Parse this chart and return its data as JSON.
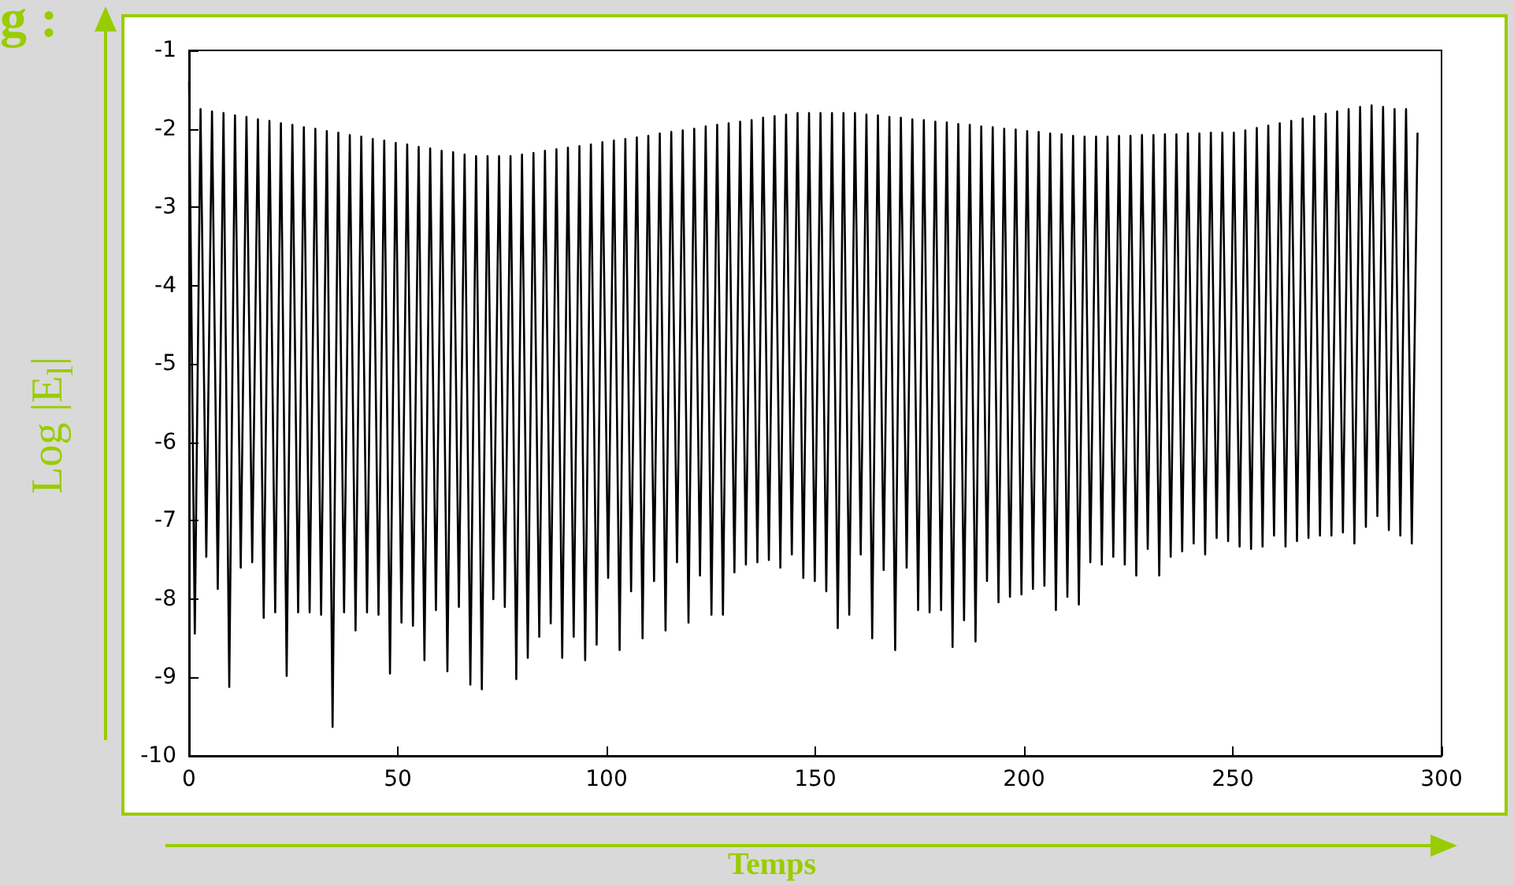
{
  "chart_data": {
    "type": "line",
    "ylabel": "Log |E$_{l}$|",
    "xlabel": "Temps",
    "annotations": [
      "g :"
    ],
    "xlim": [
      0,
      300
    ],
    "xticks": [
      0,
      50,
      100,
      150,
      200,
      250,
      300
    ],
    "ylim": [
      -10,
      -1
    ],
    "yticks": [
      -10,
      -9,
      -8,
      -7,
      -6,
      -5,
      -4,
      -3,
      -2,
      -1
    ],
    "grid": false,
    "marker": "none",
    "line_style": "solid",
    "series": [
      {
        "color": "#000000",
        "x": [
          0,
          1.38,
          2.75,
          4.13,
          5.5,
          6.88,
          8.25,
          9.63,
          11,
          12.38,
          13.75,
          15.13,
          16.5,
          17.88,
          19.25,
          20.63,
          22,
          23.38,
          24.75,
          26.13,
          27.5,
          28.88,
          30.25,
          31.63,
          33,
          34.38,
          35.75,
          37.13,
          38.5,
          39.88,
          41.25,
          42.63,
          44,
          45.38,
          46.75,
          48.13,
          49.5,
          50.88,
          52.25,
          53.63,
          55,
          56.38,
          57.75,
          59.13,
          60.5,
          61.88,
          63.25,
          64.63,
          66,
          67.38,
          68.75,
          70.13,
          71.5,
          72.88,
          74.25,
          75.63,
          77,
          78.38,
          79.75,
          81.13,
          82.5,
          83.88,
          85.25,
          86.63,
          88,
          89.38,
          90.75,
          92.13,
          93.5,
          94.88,
          96.25,
          97.63,
          99,
          100.38,
          101.75,
          103.13,
          104.5,
          105.88,
          107.25,
          108.63,
          110,
          111.38,
          112.75,
          114.13,
          115.5,
          116.88,
          118.25,
          119.63,
          121,
          122.38,
          123.75,
          125.13,
          126.5,
          127.88,
          129.25,
          130.63,
          132,
          133.38,
          134.75,
          136.13,
          137.5,
          138.88,
          140.25,
          141.63,
          143,
          144.38,
          145.75,
          147.13,
          148.5,
          149.88,
          151.25,
          152.63,
          154,
          155.38,
          156.75,
          158.13,
          159.5,
          160.88,
          162.25,
          163.63,
          165,
          166.38,
          167.75,
          169.13,
          170.5,
          171.88,
          173.25,
          174.63,
          176,
          177.38,
          178.75,
          180.13,
          181.5,
          182.88,
          184.25,
          185.63,
          187,
          188.38,
          189.75,
          191.13,
          192.5,
          193.88,
          195.25,
          196.63,
          198,
          199.38,
          200.75,
          202.13,
          203.5,
          204.88,
          206.25,
          207.63,
          209,
          210.38,
          211.75,
          213.13,
          214.5,
          215.88,
          217.25,
          218.63,
          220,
          221.38,
          222.75,
          224.13,
          225.5,
          226.88,
          228.25,
          229.63,
          231,
          232.38,
          233.75,
          235.13,
          236.5,
          237.88,
          239.25,
          240.63,
          242,
          243.38,
          244.75,
          246.13,
          247.5,
          248.88,
          250.25,
          251.63,
          253,
          254.38,
          255.75,
          257.13,
          258.5,
          259.88,
          261.25,
          262.63,
          264,
          265.38,
          266.75,
          268.13,
          269.5,
          270.88,
          272.25,
          273.63,
          275,
          276.38,
          277.75,
          279.13,
          280.5,
          281.88,
          283.25,
          284.63,
          286,
          287.38,
          288.75,
          290.13,
          291.5,
          292.88,
          294.25
        ],
        "values": [
          -1.4,
          -8.44,
          -1.75,
          -7.46,
          -1.78,
          -7.87,
          -1.8,
          -9.12,
          -1.83,
          -7.6,
          -1.85,
          -7.53,
          -1.88,
          -8.24,
          -1.9,
          -8.17,
          -1.93,
          -8.98,
          -1.95,
          -8.17,
          -1.98,
          -8.17,
          -2.0,
          -8.2,
          -2.03,
          -9.63,
          -2.05,
          -8.17,
          -2.08,
          -8.4,
          -2.1,
          -8.17,
          -2.13,
          -8.2,
          -2.15,
          -8.95,
          -2.18,
          -8.3,
          -2.2,
          -8.34,
          -2.23,
          -8.78,
          -2.25,
          -8.14,
          -2.28,
          -8.92,
          -2.3,
          -8.1,
          -2.33,
          -9.09,
          -2.35,
          -9.15,
          -2.35,
          -8.0,
          -2.35,
          -8.1,
          -2.35,
          -9.02,
          -2.33,
          -8.75,
          -2.31,
          -8.48,
          -2.28,
          -8.31,
          -2.26,
          -8.75,
          -2.24,
          -8.48,
          -2.22,
          -8.78,
          -2.2,
          -8.58,
          -2.17,
          -7.73,
          -2.15,
          -8.65,
          -2.13,
          -7.9,
          -2.11,
          -8.5,
          -2.09,
          -7.77,
          -2.06,
          -8.4,
          -2.04,
          -7.53,
          -2.02,
          -8.3,
          -2.0,
          -7.7,
          -1.97,
          -8.2,
          -1.95,
          -8.2,
          -1.93,
          -7.66,
          -1.91,
          -7.56,
          -1.89,
          -7.53,
          -1.86,
          -7.5,
          -1.84,
          -7.6,
          -1.82,
          -7.43,
          -1.8,
          -7.73,
          -1.8,
          -7.77,
          -1.8,
          -7.9,
          -1.8,
          -8.37,
          -1.8,
          -8.2,
          -1.8,
          -7.43,
          -1.82,
          -8.5,
          -1.83,
          -7.63,
          -1.85,
          -8.65,
          -1.86,
          -7.6,
          -1.88,
          -8.14,
          -1.89,
          -8.17,
          -1.91,
          -8.14,
          -1.92,
          -8.61,
          -1.94,
          -8.27,
          -1.95,
          -8.54,
          -1.97,
          -7.77,
          -1.98,
          -8.04,
          -2.0,
          -7.97,
          -2.01,
          -7.94,
          -2.03,
          -7.87,
          -2.04,
          -7.83,
          -2.06,
          -8.14,
          -2.07,
          -7.97,
          -2.09,
          -8.07,
          -2.1,
          -7.53,
          -2.1,
          -7.56,
          -2.1,
          -7.46,
          -2.09,
          -7.56,
          -2.09,
          -7.7,
          -2.08,
          -7.36,
          -2.08,
          -7.7,
          -2.07,
          -7.46,
          -2.07,
          -7.39,
          -2.06,
          -7.29,
          -2.06,
          -7.43,
          -2.05,
          -7.22,
          -2.05,
          -7.26,
          -2.05,
          -7.33,
          -2.02,
          -7.36,
          -1.99,
          -7.33,
          -1.96,
          -7.19,
          -1.93,
          -7.33,
          -1.9,
          -7.26,
          -1.87,
          -7.22,
          -1.84,
          -7.19,
          -1.81,
          -7.19,
          -1.78,
          -7.15,
          -1.75,
          -7.29,
          -1.72,
          -7.08,
          -1.7,
          -6.94,
          -1.72,
          -7.12,
          -1.75,
          -7.19,
          -1.75,
          -7.29,
          -2.05
        ]
      }
    ]
  }
}
